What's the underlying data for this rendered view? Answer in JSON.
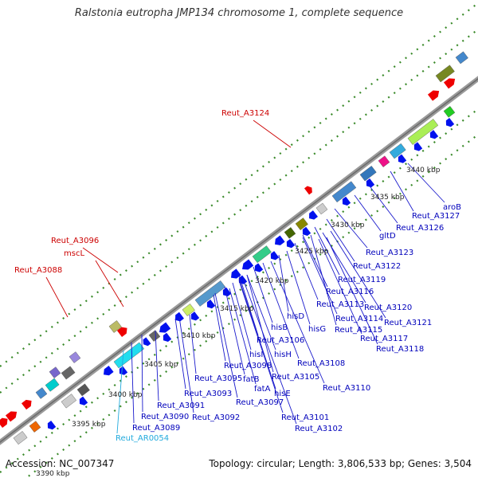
{
  "title": "Ralstonia eutropha JMP134 chromosome 1, complete sequence",
  "accession_text": "Accession: NC_007347",
  "summary_text": "Topology: circular; Length: 3,806,533 bp; Genes: 3,504",
  "colors": {
    "backbone": "#9a9a9a",
    "grid": "#3a8a2a",
    "label_red": "#cc0000",
    "label_blue": "#0000bb",
    "label_cyan": "#22aadd",
    "leader_blue": "#1a1acc",
    "leader_red": "#cc0000"
  },
  "kbp_ticks": [
    {
      "label": "3390 kbp"
    },
    {
      "label": "3395 kbp"
    },
    {
      "label": "3400 kbp"
    },
    {
      "label": "3405 kbp"
    },
    {
      "label": "3410 kbp"
    },
    {
      "label": "3415 kbp"
    },
    {
      "label": "3420 kbp"
    },
    {
      "label": "3425 kbp"
    },
    {
      "label": "3430 kbp"
    },
    {
      "label": "3435 kbp"
    },
    {
      "label": "3440 kbp"
    }
  ],
  "gene_labels": [
    {
      "text": "Reut_A3124",
      "color": "red"
    },
    {
      "text": "Reut_A3096",
      "color": "red"
    },
    {
      "text": "mscL",
      "color": "red"
    },
    {
      "text": "Reut_A3088",
      "color": "red"
    },
    {
      "text": "aroB",
      "color": "blue"
    },
    {
      "text": "Reut_A3127",
      "color": "blue"
    },
    {
      "text": "Reut_A3126",
      "color": "blue"
    },
    {
      "text": "gltD",
      "color": "blue"
    },
    {
      "text": "Reut_A3123",
      "color": "blue"
    },
    {
      "text": "Reut_A3122",
      "color": "blue"
    },
    {
      "text": "Reut_A3119",
      "color": "blue"
    },
    {
      "text": "Reut_A3116",
      "color": "blue"
    },
    {
      "text": "Reut_A3120",
      "color": "blue"
    },
    {
      "text": "Reut_A3113",
      "color": "blue"
    },
    {
      "text": "Reut_A3121",
      "color": "blue"
    },
    {
      "text": "hisD",
      "color": "blue"
    },
    {
      "text": "Reut_A3114",
      "color": "blue"
    },
    {
      "text": "hisG",
      "color": "blue"
    },
    {
      "text": "Reut_A3115",
      "color": "blue"
    },
    {
      "text": "hisB",
      "color": "blue"
    },
    {
      "text": "Reut_A3117",
      "color": "blue"
    },
    {
      "text": "Reut_A3106",
      "color": "blue"
    },
    {
      "text": "Reut_A3118",
      "color": "blue"
    },
    {
      "text": "hisI",
      "color": "blue"
    },
    {
      "text": "hisH",
      "color": "blue"
    },
    {
      "text": "Reut_A3098",
      "color": "blue"
    },
    {
      "text": "Reut_A3108",
      "color": "blue"
    },
    {
      "text": "fatB",
      "color": "blue"
    },
    {
      "text": "Reut_A3105",
      "color": "blue"
    },
    {
      "text": "Reut_A3095",
      "color": "blue"
    },
    {
      "text": "fatA",
      "color": "blue"
    },
    {
      "text": "Reut_A3110",
      "color": "blue"
    },
    {
      "text": "hisE",
      "color": "blue"
    },
    {
      "text": "Reut_A3093",
      "color": "blue"
    },
    {
      "text": "Reut_A3097",
      "color": "blue"
    },
    {
      "text": "Reut_A3091",
      "color": "blue"
    },
    {
      "text": "Reut_A3092",
      "color": "blue"
    },
    {
      "text": "Reut_A3090",
      "color": "blue"
    },
    {
      "text": "Reut_A3101",
      "color": "blue"
    },
    {
      "text": "Reut_A3089",
      "color": "blue"
    },
    {
      "text": "Reut_A3102",
      "color": "blue"
    },
    {
      "text": "Reut_AR0054",
      "color": "cyan"
    }
  ]
}
